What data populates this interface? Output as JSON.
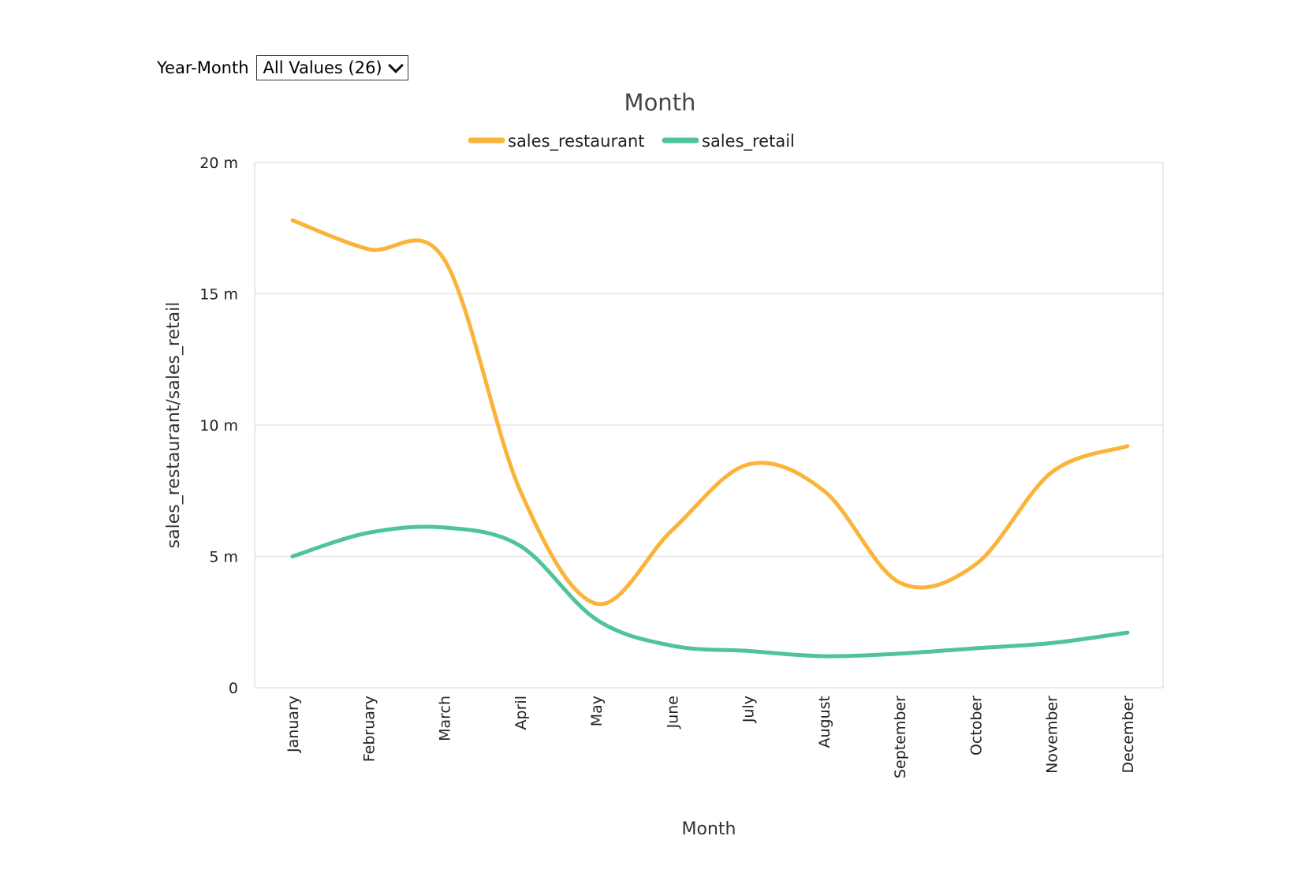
{
  "filter": {
    "label": "Year-Month",
    "selected": "All Values (26)"
  },
  "chart_data": {
    "type": "line",
    "title": "Month",
    "xlabel": "Month",
    "ylabel": "sales_restaurant/sales_retail",
    "categories": [
      "January",
      "February",
      "March",
      "April",
      "May",
      "June",
      "July",
      "August",
      "September",
      "October",
      "November",
      "December"
    ],
    "ylim": [
      0,
      20000000
    ],
    "yticks": [
      0,
      5000000,
      10000000,
      15000000,
      20000000
    ],
    "ytick_labels": [
      "0",
      "5 m",
      "10 m",
      "15 m",
      "20 m"
    ],
    "grid": true,
    "legend_position": "top",
    "series": [
      {
        "name": "sales_restaurant",
        "color": "#fbb33a",
        "values": [
          17800000,
          16700000,
          16300000,
          7500000,
          3200000,
          6000000,
          8500000,
          7500000,
          4000000,
          4700000,
          8200000,
          9200000
        ]
      },
      {
        "name": "sales_retail",
        "color": "#4fc497",
        "values": [
          5000000,
          5900000,
          6100000,
          5400000,
          2600000,
          1600000,
          1400000,
          1200000,
          1300000,
          1500000,
          1700000,
          2100000
        ]
      }
    ]
  }
}
